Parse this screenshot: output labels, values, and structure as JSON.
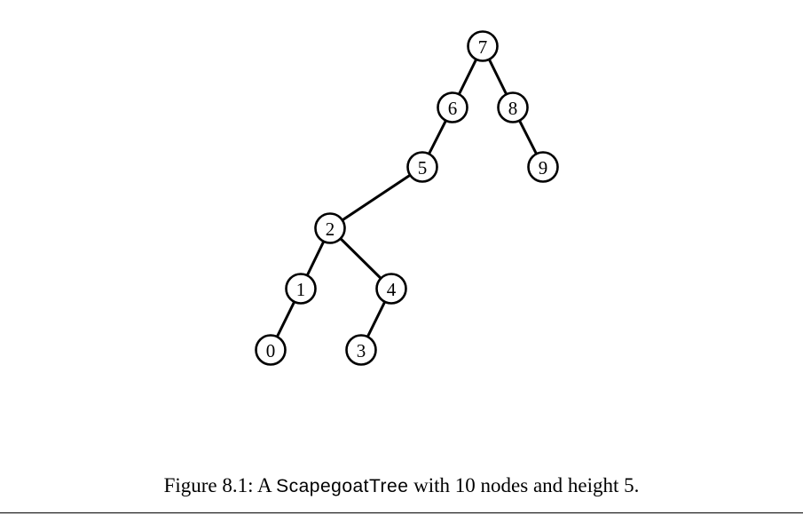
{
  "figure": {
    "nodes": [
      {
        "id": "7",
        "label": "7"
      },
      {
        "id": "6",
        "label": "6"
      },
      {
        "id": "8",
        "label": "8"
      },
      {
        "id": "5",
        "label": "5"
      },
      {
        "id": "9",
        "label": "9"
      },
      {
        "id": "2",
        "label": "2"
      },
      {
        "id": "1",
        "label": "1"
      },
      {
        "id": "4",
        "label": "4"
      },
      {
        "id": "0",
        "label": "0"
      },
      {
        "id": "3",
        "label": "3"
      }
    ],
    "edges": [
      {
        "from": "7",
        "to": "6"
      },
      {
        "from": "7",
        "to": "8"
      },
      {
        "from": "6",
        "to": "5"
      },
      {
        "from": "8",
        "to": "9"
      },
      {
        "from": "5",
        "to": "2"
      },
      {
        "from": "2",
        "to": "1"
      },
      {
        "from": "2",
        "to": "4"
      },
      {
        "from": "1",
        "to": "0"
      },
      {
        "from": "4",
        "to": "3"
      }
    ]
  },
  "caption": {
    "prefix": "Figure 8.1: A ",
    "class_name": "ScapegoatTree",
    "suffix": " with 10 nodes and height 5."
  }
}
